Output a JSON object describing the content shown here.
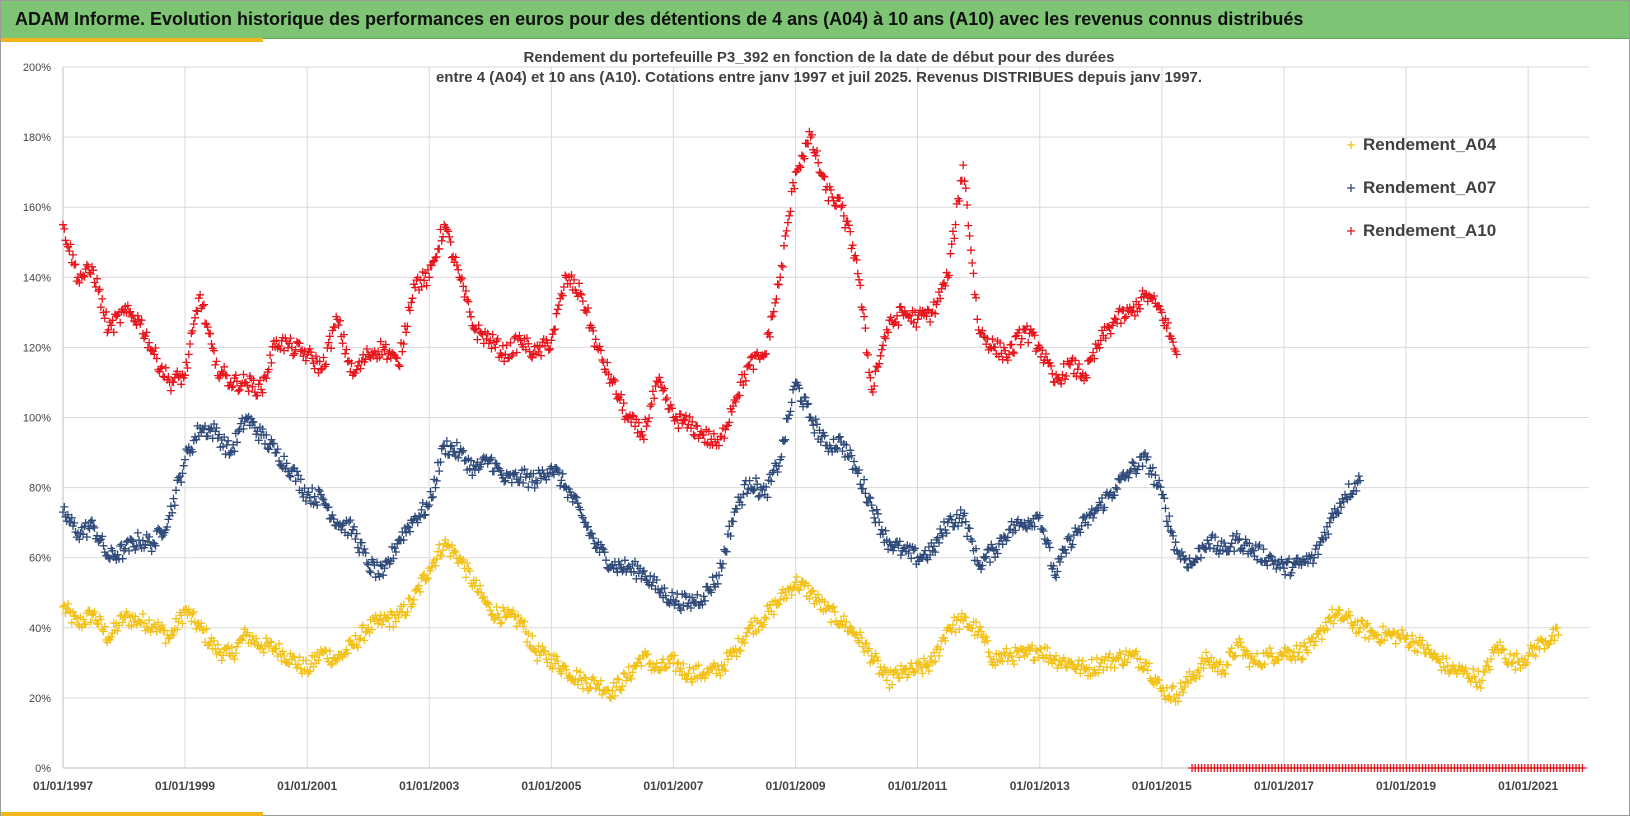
{
  "banner": {
    "title": "ADAM Informe. Evolution historique des performances en euros pour des détentions de 4 ans (A04) à 10 ans (A10) avec les revenus connus distribués"
  },
  "colors": {
    "banner_bg": "#7dc474",
    "accent": "#f2b61c",
    "A04": "#f2c21b",
    "A07": "#2f4a78",
    "A10": "#e8141c"
  },
  "chart_data": {
    "type": "scatter",
    "title_line1": "Rendement du portefeuille P3_392 en fonction de la date de début pour des durées",
    "title_line2": "entre 4 (A04) et 10 ans (A10). Cotations entre janv 1997 et juil 2025. Revenus DISTRIBUES depuis janv 1997.",
    "marker": "+",
    "xlim": [
      "1997-01-01",
      "2021-12-31"
    ],
    "ylim": [
      0,
      200
    ],
    "y_unit": "%",
    "x_tick_labels": [
      "01/01/1997",
      "01/01/1999",
      "01/01/2001",
      "01/01/2003",
      "01/01/2005",
      "01/01/2007",
      "01/01/2009",
      "01/01/2011",
      "01/01/2013",
      "01/01/2015",
      "01/01/2017",
      "01/01/2019",
      "01/01/2021"
    ],
    "y_tick_labels": [
      "0%",
      "20%",
      "40%",
      "60%",
      "80%",
      "100%",
      "120%",
      "140%",
      "160%",
      "180%",
      "200%"
    ],
    "y_ticks": [
      0,
      20,
      40,
      60,
      80,
      100,
      120,
      140,
      160,
      180,
      200
    ],
    "grid": true,
    "legend_position": "top-right",
    "series": [
      {
        "name": "Rendement_A04",
        "color": "#f2c21b",
        "x": [
          "1997-01",
          "1997-04",
          "1997-07",
          "1997-10",
          "1998-01",
          "1998-04",
          "1998-07",
          "1998-10",
          "1999-01",
          "1999-04",
          "1999-07",
          "1999-10",
          "2000-01",
          "2000-04",
          "2000-07",
          "2000-10",
          "2001-01",
          "2001-04",
          "2001-07",
          "2001-10",
          "2002-01",
          "2002-04",
          "2002-07",
          "2002-10",
          "2003-01",
          "2003-04",
          "2003-07",
          "2003-10",
          "2004-01",
          "2004-04",
          "2004-07",
          "2004-10",
          "2005-01",
          "2005-04",
          "2005-07",
          "2005-10",
          "2006-01",
          "2006-04",
          "2006-07",
          "2006-10",
          "2007-01",
          "2007-04",
          "2007-07",
          "2007-10",
          "2008-01",
          "2008-04",
          "2008-07",
          "2008-10",
          "2009-01",
          "2009-04",
          "2009-07",
          "2009-10",
          "2010-01",
          "2010-04",
          "2010-07",
          "2010-10",
          "2011-01",
          "2011-04",
          "2011-07",
          "2011-10",
          "2012-01",
          "2012-04",
          "2012-07",
          "2012-10",
          "2013-01",
          "2013-04",
          "2013-07",
          "2013-10",
          "2014-01",
          "2014-04",
          "2014-07",
          "2014-10",
          "2015-01",
          "2015-04",
          "2015-07",
          "2015-10",
          "2016-01",
          "2016-04",
          "2016-07",
          "2016-10",
          "2017-01",
          "2017-04",
          "2017-07",
          "2017-10",
          "2018-01",
          "2018-04",
          "2018-07",
          "2018-10",
          "2019-01",
          "2019-04",
          "2019-07",
          "2019-10",
          "2020-01",
          "2020-04",
          "2020-07",
          "2020-10",
          "2021-01",
          "2021-04",
          "2021-07"
        ],
        "values": [
          46,
          41,
          44,
          37,
          43,
          42,
          41,
          37,
          45,
          40,
          34,
          32,
          38,
          35,
          34,
          31,
          28,
          33,
          31,
          35,
          40,
          42,
          43,
          48,
          57,
          64,
          60,
          52,
          45,
          43,
          42,
          33,
          31,
          28,
          25,
          24,
          22,
          26,
          32,
          28,
          30,
          27,
          27,
          28,
          33,
          40,
          43,
          48,
          53,
          50,
          45,
          42,
          38,
          32,
          25,
          27,
          28,
          30,
          40,
          42,
          39,
          31,
          32,
          32,
          34,
          31,
          30,
          28,
          30,
          31,
          32,
          30,
          22,
          21,
          26,
          31,
          28,
          35,
          30,
          32,
          33,
          33,
          35,
          43,
          43,
          40,
          38,
          38,
          37,
          35,
          31,
          28,
          27,
          25,
          35,
          30,
          32,
          36,
          38
        ]
      },
      {
        "name": "Rendement_A07",
        "color": "#2f4a78",
        "x": [
          "1997-01",
          "1997-04",
          "1997-07",
          "1997-10",
          "1998-01",
          "1998-04",
          "1998-07",
          "1998-10",
          "1999-01",
          "1999-04",
          "1999-07",
          "1999-10",
          "2000-01",
          "2000-04",
          "2000-07",
          "2000-10",
          "2001-01",
          "2001-04",
          "2001-07",
          "2001-10",
          "2002-01",
          "2002-04",
          "2002-07",
          "2002-10",
          "2003-01",
          "2003-04",
          "2003-07",
          "2003-10",
          "2004-01",
          "2004-04",
          "2004-07",
          "2004-10",
          "2005-01",
          "2005-04",
          "2005-07",
          "2005-10",
          "2006-01",
          "2006-04",
          "2006-07",
          "2006-10",
          "2007-01",
          "2007-04",
          "2007-07",
          "2007-10",
          "2008-01",
          "2008-04",
          "2008-07",
          "2008-10",
          "2009-01",
          "2009-04",
          "2009-07",
          "2009-10",
          "2010-01",
          "2010-04",
          "2010-07",
          "2010-10",
          "2011-01",
          "2011-04",
          "2011-07",
          "2011-10",
          "2012-01",
          "2012-04",
          "2012-07",
          "2012-10",
          "2013-01",
          "2013-04",
          "2013-07",
          "2013-10",
          "2014-01",
          "2014-04",
          "2014-07",
          "2014-10",
          "2015-01",
          "2015-04",
          "2015-07",
          "2015-10",
          "2016-01",
          "2016-04",
          "2016-07",
          "2016-10",
          "2017-01",
          "2017-04",
          "2017-07",
          "2017-10",
          "2018-01",
          "2018-04"
        ],
        "values": [
          73,
          67,
          69,
          60,
          62,
          65,
          64,
          72,
          88,
          97,
          96,
          90,
          100,
          95,
          90,
          85,
          78,
          77,
          70,
          68,
          58,
          55,
          65,
          71,
          75,
          92,
          90,
          85,
          88,
          82,
          83,
          82,
          86,
          80,
          72,
          63,
          58,
          57,
          56,
          51,
          48,
          47,
          49,
          55,
          73,
          82,
          78,
          88,
          110,
          100,
          92,
          93,
          85,
          75,
          65,
          62,
          60,
          62,
          70,
          72,
          58,
          62,
          68,
          70,
          72,
          55,
          65,
          70,
          75,
          80,
          85,
          88,
          78,
          62,
          58,
          65,
          62,
          65,
          62,
          60,
          57,
          58,
          60,
          70,
          78,
          82
        ]
      },
      {
        "name": "Rendement_A10",
        "color": "#e8141c",
        "x": [
          "1997-01",
          "1997-04",
          "1997-07",
          "1997-10",
          "1998-01",
          "1998-04",
          "1998-07",
          "1998-10",
          "1999-01",
          "1999-04",
          "1999-07",
          "1999-10",
          "2000-01",
          "2000-04",
          "2000-07",
          "2000-10",
          "2001-01",
          "2001-04",
          "2001-07",
          "2001-10",
          "2002-01",
          "2002-04",
          "2002-07",
          "2002-10",
          "2003-01",
          "2003-04",
          "2003-07",
          "2003-10",
          "2004-01",
          "2004-04",
          "2004-07",
          "2004-10",
          "2005-01",
          "2005-04",
          "2005-07",
          "2005-10",
          "2006-01",
          "2006-04",
          "2006-07",
          "2006-10",
          "2007-01",
          "2007-04",
          "2007-07",
          "2007-10",
          "2008-01",
          "2008-04",
          "2008-07",
          "2008-10",
          "2009-01",
          "2009-04",
          "2009-07",
          "2009-10",
          "2010-01",
          "2010-04",
          "2010-07",
          "2010-10",
          "2011-01",
          "2011-04",
          "2011-07",
          "2011-10",
          "2012-01",
          "2012-04",
          "2012-07",
          "2012-10",
          "2013-01",
          "2013-04",
          "2013-07",
          "2013-10",
          "2014-01",
          "2014-04",
          "2014-07",
          "2014-10",
          "2015-01",
          "2015-04"
        ],
        "values": [
          155,
          140,
          142,
          125,
          130,
          128,
          118,
          110,
          112,
          135,
          115,
          110,
          110,
          108,
          122,
          120,
          118,
          114,
          128,
          112,
          118,
          120,
          115,
          138,
          140,
          155,
          140,
          125,
          122,
          118,
          122,
          118,
          122,
          140,
          135,
          120,
          110,
          100,
          95,
          110,
          100,
          98,
          95,
          92,
          105,
          115,
          118,
          140,
          170,
          180,
          165,
          160,
          145,
          108,
          125,
          130,
          128,
          130,
          140,
          172,
          125,
          120,
          118,
          125,
          120,
          110,
          115,
          112,
          122,
          128,
          130,
          135,
          130,
          118
        ]
      },
      {
        "name": "",
        "color": "#e8141c",
        "x_range": [
          "2015-07",
          "2021-12"
        ],
        "values_constant": 0
      }
    ]
  }
}
